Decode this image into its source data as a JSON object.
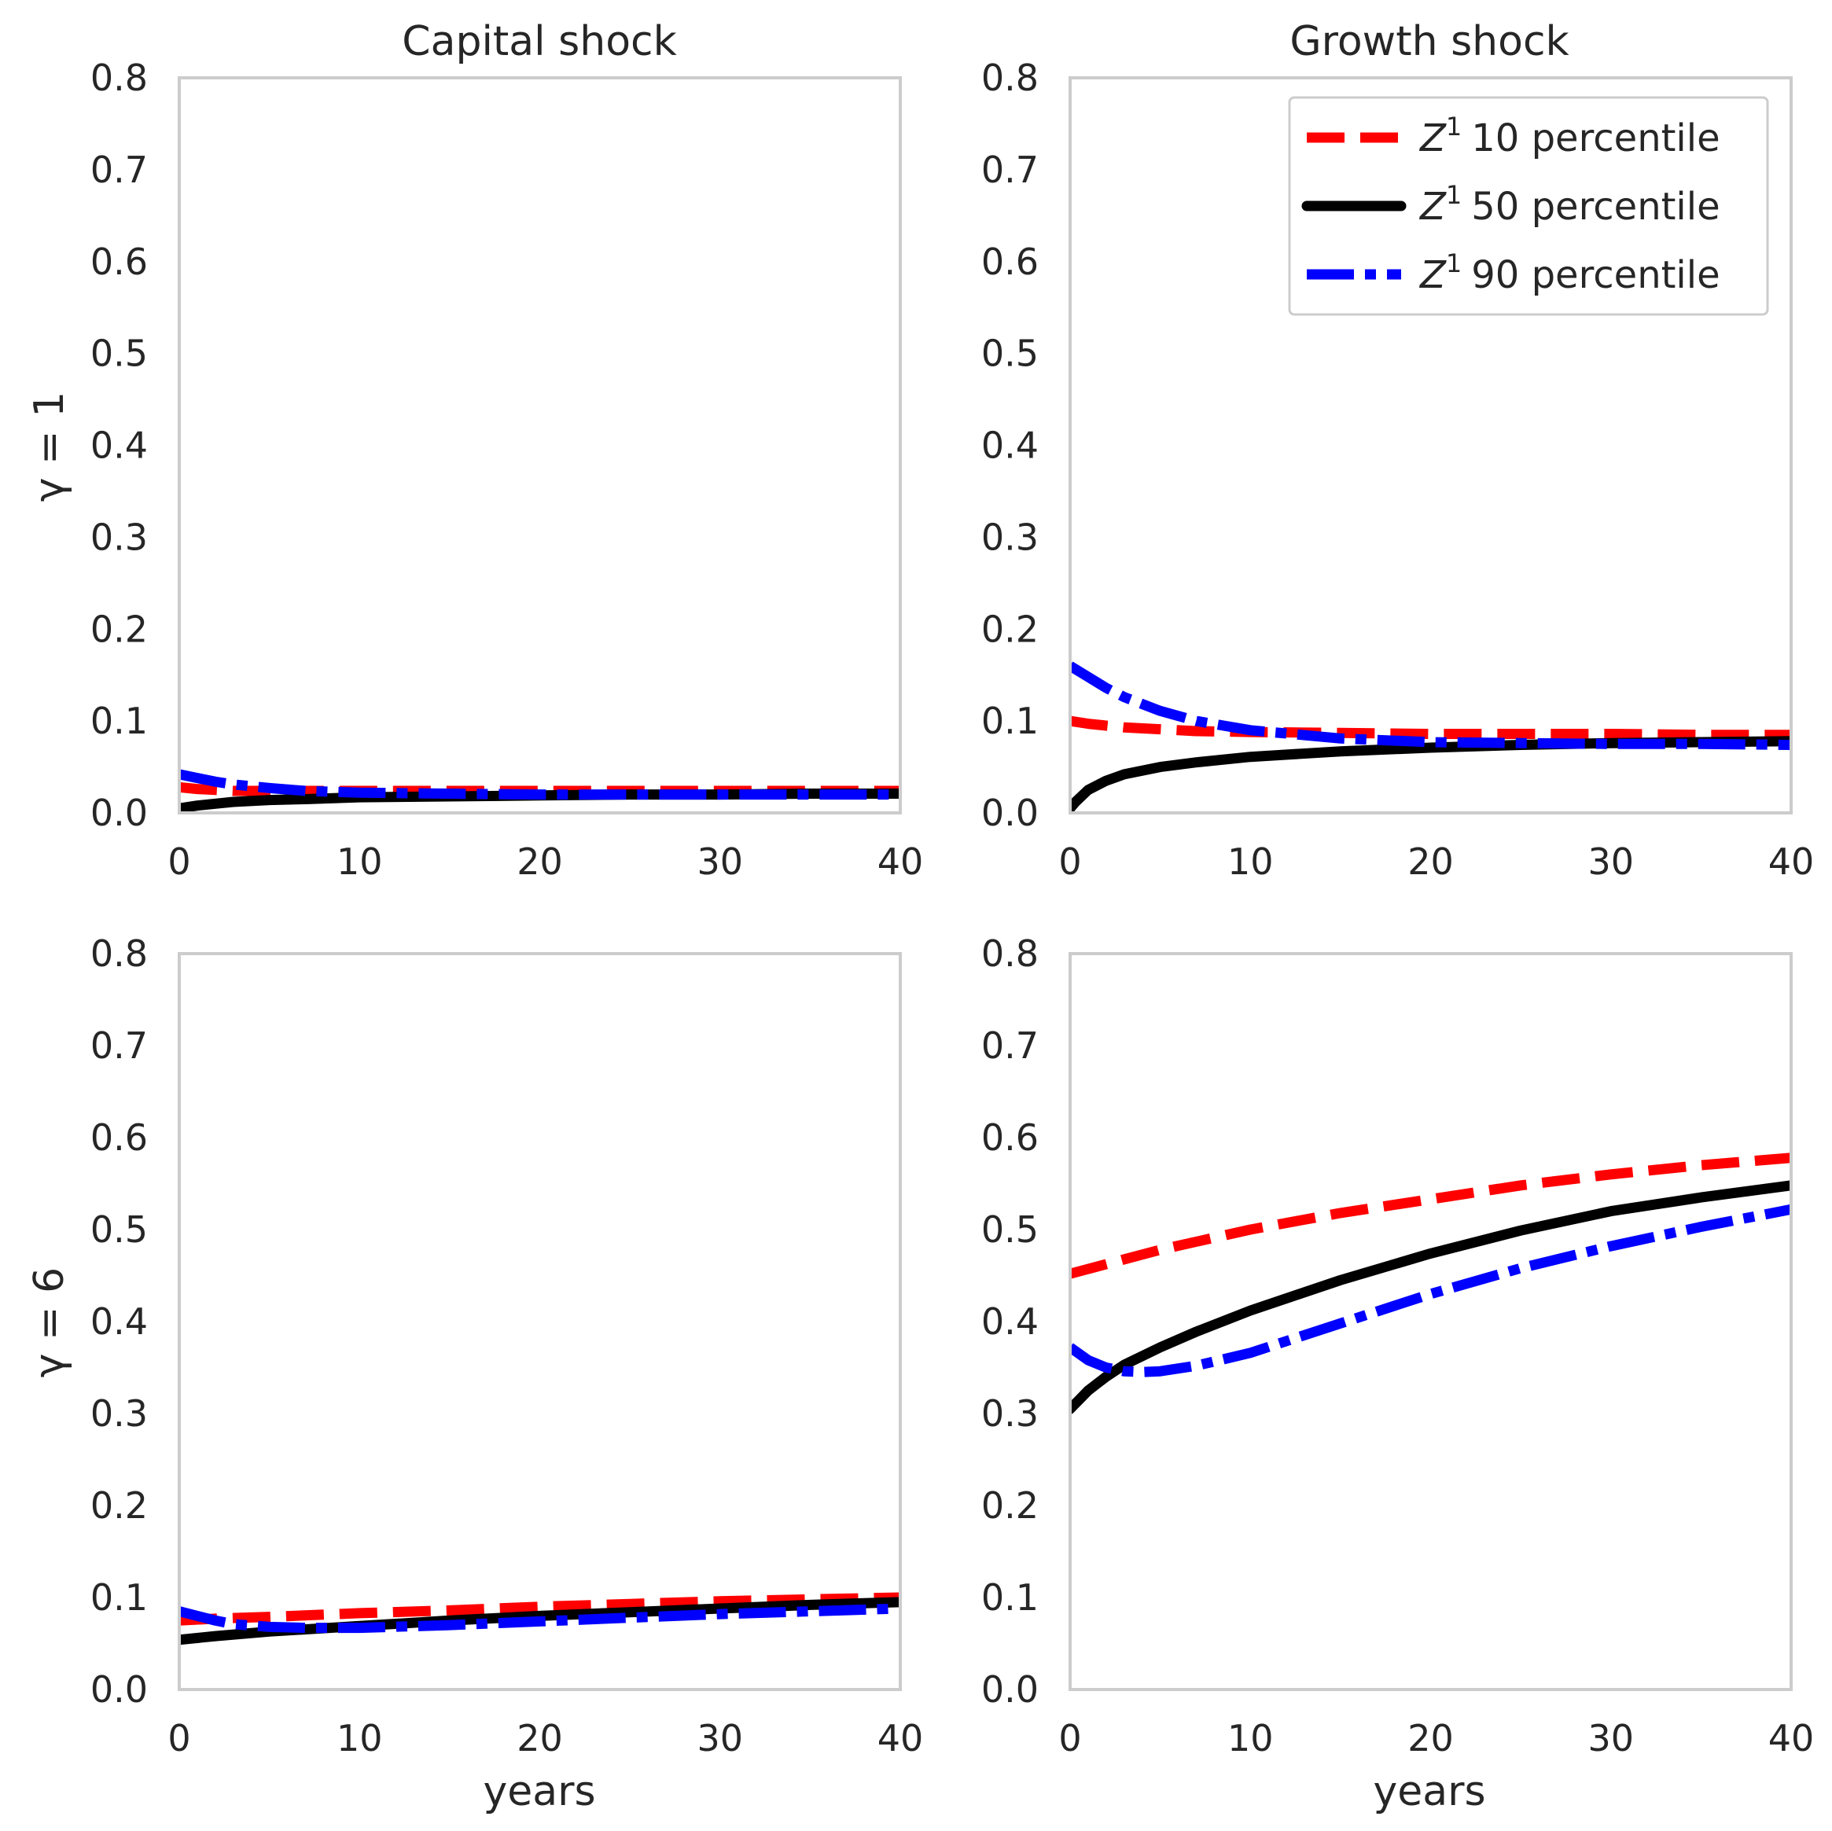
{
  "chart_data": [
    {
      "type": "line",
      "title": "Capital shock",
      "xlabel": "",
      "ylabel": "γ = 1",
      "xlim": [
        0,
        40
      ],
      "ylim": [
        0,
        0.8
      ],
      "grid": false,
      "series": [
        {
          "name": "Z¹ 10 percentile",
          "color": "#ff0000",
          "style": "dashed",
          "x": [
            0,
            1,
            2,
            3,
            5,
            7,
            10,
            15,
            20,
            25,
            30,
            35,
            40
          ],
          "y": [
            0.028,
            0.026,
            0.025,
            0.024,
            0.024,
            0.024,
            0.024,
            0.024,
            0.024,
            0.024,
            0.024,
            0.024,
            0.024
          ]
        },
        {
          "name": "Z¹ 50 percentile",
          "color": "#000000",
          "style": "solid",
          "x": [
            0,
            1,
            2,
            3,
            5,
            7,
            10,
            15,
            20,
            25,
            30,
            35,
            40
          ],
          "y": [
            0.005,
            0.008,
            0.01,
            0.012,
            0.014,
            0.015,
            0.017,
            0.018,
            0.019,
            0.02,
            0.02,
            0.021,
            0.021
          ]
        },
        {
          "name": "Z¹ 90 percentile",
          "color": "#0000ff",
          "style": "dashdot",
          "x": [
            0,
            1,
            2,
            3,
            5,
            7,
            10,
            15,
            20,
            25,
            30,
            35,
            40
          ],
          "y": [
            0.042,
            0.038,
            0.034,
            0.031,
            0.027,
            0.024,
            0.022,
            0.021,
            0.02,
            0.02,
            0.02,
            0.02,
            0.02
          ]
        }
      ]
    },
    {
      "type": "line",
      "title": "Growth shock",
      "xlabel": "",
      "ylabel": "",
      "xlim": [
        0,
        40
      ],
      "ylim": [
        0,
        0.8
      ],
      "grid": false,
      "legend": "top-right",
      "series": [
        {
          "name": "Z¹ 10 percentile",
          "color": "#ff0000",
          "style": "dashed",
          "x": [
            0,
            1,
            2,
            3,
            5,
            7,
            10,
            15,
            20,
            25,
            30,
            35,
            40
          ],
          "y": [
            0.1,
            0.097,
            0.095,
            0.093,
            0.091,
            0.089,
            0.088,
            0.087,
            0.086,
            0.086,
            0.086,
            0.085,
            0.085
          ]
        },
        {
          "name": "Z¹ 50 percentile",
          "color": "#000000",
          "style": "solid",
          "x": [
            0,
            0.3,
            1,
            2,
            3,
            5,
            7,
            10,
            15,
            20,
            25,
            30,
            35,
            40
          ],
          "y": [
            0.005,
            0.012,
            0.025,
            0.035,
            0.042,
            0.05,
            0.055,
            0.061,
            0.067,
            0.071,
            0.074,
            0.076,
            0.077,
            0.078
          ]
        },
        {
          "name": "Z¹ 90 percentile",
          "color": "#0000ff",
          "style": "dashdot",
          "x": [
            0,
            1,
            2,
            3,
            5,
            7,
            10,
            15,
            20,
            25,
            30,
            35,
            40
          ],
          "y": [
            0.16,
            0.148,
            0.136,
            0.126,
            0.111,
            0.1,
            0.09,
            0.081,
            0.077,
            0.076,
            0.075,
            0.075,
            0.074
          ]
        }
      ]
    },
    {
      "type": "line",
      "title": "",
      "xlabel": "years",
      "ylabel": "γ = 6",
      "xlim": [
        0,
        40
      ],
      "ylim": [
        0,
        0.8
      ],
      "grid": false,
      "series": [
        {
          "name": "Z¹ 10 percentile",
          "color": "#ff0000",
          "style": "dashed",
          "x": [
            0,
            2,
            5,
            10,
            15,
            20,
            25,
            30,
            35,
            40
          ],
          "y": [
            0.075,
            0.077,
            0.079,
            0.083,
            0.086,
            0.09,
            0.093,
            0.096,
            0.098,
            0.1
          ]
        },
        {
          "name": "Z¹ 50 percentile",
          "color": "#000000",
          "style": "solid",
          "x": [
            0,
            2,
            5,
            10,
            15,
            20,
            25,
            30,
            35,
            40
          ],
          "y": [
            0.054,
            0.058,
            0.063,
            0.069,
            0.075,
            0.08,
            0.084,
            0.088,
            0.092,
            0.095
          ]
        },
        {
          "name": "Z¹ 90 percentile",
          "color": "#0000ff",
          "style": "dashdot",
          "x": [
            0,
            1,
            2,
            3,
            5,
            7,
            10,
            15,
            20,
            25,
            30,
            35,
            40
          ],
          "y": [
            0.085,
            0.08,
            0.075,
            0.071,
            0.068,
            0.067,
            0.067,
            0.07,
            0.074,
            0.078,
            0.082,
            0.085,
            0.088
          ]
        }
      ]
    },
    {
      "type": "line",
      "title": "",
      "xlabel": "years",
      "ylabel": "",
      "xlim": [
        0,
        40
      ],
      "ylim": [
        0,
        0.8
      ],
      "grid": false,
      "series": [
        {
          "name": "Z¹ 10 percentile",
          "color": "#ff0000",
          "style": "dashed",
          "x": [
            0,
            5,
            10,
            15,
            20,
            25,
            30,
            35,
            40
          ],
          "y": [
            0.452,
            0.478,
            0.5,
            0.518,
            0.533,
            0.548,
            0.56,
            0.57,
            0.578
          ]
        },
        {
          "name": "Z¹ 50 percentile",
          "color": "#000000",
          "style": "solid",
          "x": [
            0,
            0.5,
            1,
            2,
            3,
            5,
            7,
            10,
            15,
            20,
            25,
            30,
            35,
            40
          ],
          "y": [
            0.305,
            0.315,
            0.325,
            0.34,
            0.353,
            0.372,
            0.389,
            0.412,
            0.445,
            0.474,
            0.499,
            0.52,
            0.535,
            0.548
          ]
        },
        {
          "name": "Z¹ 90 percentile",
          "color": "#0000ff",
          "style": "dashdot",
          "x": [
            0,
            1,
            2,
            3,
            4,
            5,
            7,
            10,
            15,
            20,
            25,
            30,
            35,
            40
          ],
          "y": [
            0.372,
            0.358,
            0.35,
            0.346,
            0.345,
            0.346,
            0.352,
            0.366,
            0.398,
            0.43,
            0.458,
            0.482,
            0.503,
            0.522
          ]
        }
      ]
    }
  ],
  "x_ticks": [
    "0",
    "10",
    "20",
    "30",
    "40"
  ],
  "y_ticks": [
    "0.0",
    "0.1",
    "0.2",
    "0.3",
    "0.4",
    "0.5",
    "0.6",
    "0.7",
    "0.8"
  ],
  "legend": {
    "prefix": "Z",
    "superscript": "1",
    "entries": [
      {
        "label": "10 percentile",
        "color": "#ff0000",
        "style": "dashed"
      },
      {
        "label": "50 percentile",
        "color": "#000000",
        "style": "solid"
      },
      {
        "label": "90 percentile",
        "color": "#0000ff",
        "style": "dashdot"
      }
    ]
  },
  "colors": {
    "spine": "#cccccc",
    "text": "#262626",
    "background": "#ffffff"
  }
}
